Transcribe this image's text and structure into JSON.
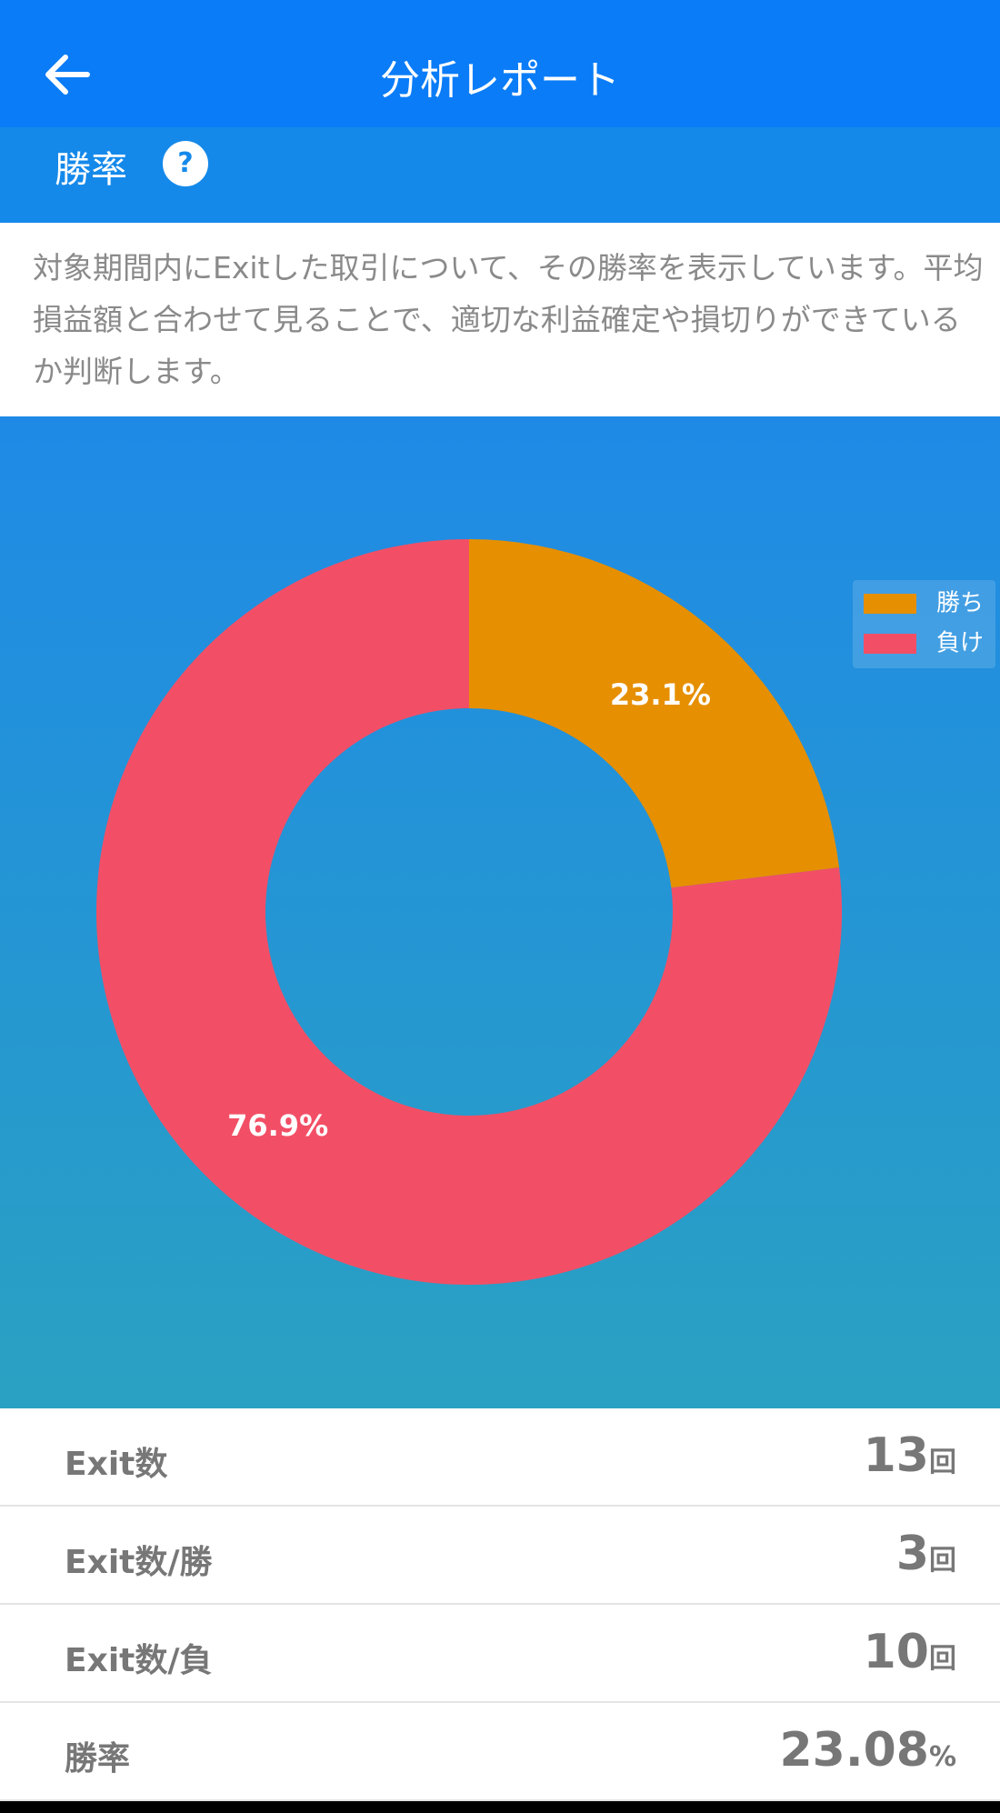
{
  "header": {
    "title": "分析レポート"
  },
  "section": {
    "title": "勝率",
    "help": "?",
    "description": "対象期間内にExitした取引について、その勝率を表示しています。平均損益額と合わせて見ることで、適切な利益確定や損切りができているか判断します。"
  },
  "chart_data": {
    "type": "pie",
    "donut": true,
    "categories": [
      "勝ち",
      "負け"
    ],
    "values": [
      23.1,
      76.9
    ],
    "value_labels": [
      "23.1%",
      "76.9%"
    ],
    "colors": [
      "#e68f00",
      "#f24f66"
    ],
    "legend": "right"
  },
  "stats": [
    {
      "label": "Exit数",
      "value": 13,
      "unit": "回"
    },
    {
      "label": "Exit数/勝",
      "value": 3,
      "unit": "回"
    },
    {
      "label": "Exit数/負",
      "value": 10,
      "unit": "回"
    },
    {
      "label": "勝率",
      "value": 23.08,
      "unit": "%"
    }
  ]
}
